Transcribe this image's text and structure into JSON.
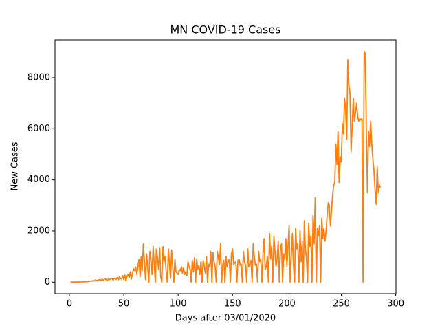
{
  "chart_data": {
    "type": "line",
    "title": "MN COVID-19 Cases",
    "xlabel": "Days after 03/01/2020",
    "ylabel": "New Cases",
    "color": "#ff7f0e",
    "xlim": [
      -13.25,
      300.25
    ],
    "xticks": [
      0,
      50,
      100,
      150,
      200,
      250,
      300
    ],
    "ylim": [
      -450,
      9480
    ],
    "yticks": [
      0,
      2000,
      4000,
      6000,
      8000
    ],
    "x": [
      1,
      2,
      3,
      4,
      5,
      6,
      7,
      8,
      9,
      10,
      11,
      12,
      13,
      14,
      15,
      16,
      17,
      18,
      19,
      20,
      21,
      22,
      23,
      24,
      25,
      26,
      27,
      28,
      29,
      30,
      31,
      32,
      33,
      34,
      35,
      36,
      37,
      38,
      39,
      40,
      41,
      42,
      43,
      44,
      45,
      46,
      47,
      48,
      49,
      50,
      51,
      52,
      53,
      54,
      55,
      56,
      57,
      58,
      59,
      60,
      61,
      62,
      63,
      64,
      65,
      66,
      67,
      68,
      69,
      70,
      71,
      72,
      73,
      74,
      75,
      76,
      77,
      78,
      79,
      80,
      81,
      82,
      83,
      84,
      85,
      86,
      87,
      88,
      89,
      90,
      91,
      92,
      93,
      94,
      95,
      96,
      97,
      98,
      99,
      100,
      101,
      102,
      103,
      104,
      105,
      106,
      107,
      108,
      109,
      110,
      111,
      112,
      113,
      114,
      115,
      116,
      117,
      118,
      119,
      120,
      121,
      122,
      123,
      124,
      125,
      126,
      127,
      128,
      129,
      130,
      131,
      132,
      133,
      134,
      135,
      136,
      137,
      138,
      139,
      140,
      141,
      142,
      143,
      144,
      145,
      146,
      147,
      148,
      149,
      150,
      151,
      152,
      153,
      154,
      155,
      156,
      157,
      158,
      159,
      160,
      161,
      162,
      163,
      164,
      165,
      166,
      167,
      168,
      169,
      170,
      171,
      172,
      173,
      174,
      175,
      176,
      177,
      178,
      179,
      180,
      181,
      182,
      183,
      184,
      185,
      186,
      187,
      188,
      189,
      190,
      191,
      192,
      193,
      194,
      195,
      196,
      197,
      198,
      199,
      200,
      201,
      202,
      203,
      204,
      205,
      206,
      207,
      208,
      209,
      210,
      211,
      212,
      213,
      214,
      215,
      216,
      217,
      218,
      219,
      220,
      221,
      222,
      223,
      224,
      225,
      226,
      227,
      228,
      229,
      230,
      231,
      232,
      233,
      234,
      235,
      236,
      237,
      238,
      239,
      240,
      241,
      242,
      243,
      244,
      245,
      246,
      247,
      248,
      249,
      250,
      251,
      252,
      253,
      254,
      255,
      256,
      257,
      258,
      259,
      260,
      261,
      262,
      263,
      264,
      265,
      266,
      267,
      268,
      269,
      270,
      271,
      272,
      273,
      274,
      275,
      276,
      277,
      278,
      279,
      280,
      281,
      282,
      283,
      284,
      285,
      286
    ],
    "values": [
      1,
      0,
      2,
      3,
      5,
      2,
      4,
      8,
      10,
      5,
      7,
      12,
      15,
      10,
      20,
      25,
      18,
      30,
      40,
      35,
      50,
      60,
      45,
      80,
      70,
      55,
      90,
      100,
      60,
      120,
      80,
      110,
      130,
      90,
      70,
      140,
      100,
      120,
      150,
      80,
      130,
      160,
      110,
      180,
      90,
      200,
      150,
      120,
      250,
      100,
      280,
      50,
      230,
      300,
      180,
      400,
      120,
      350,
      520,
      450,
      580,
      300,
      600,
      900,
      200,
      1000,
      450,
      1500,
      800,
      100,
      1100,
      600,
      0,
      1200,
      900,
      300,
      1400,
      700,
      0,
      1300,
      950,
      500,
      1350,
      200,
      0,
      1380,
      800,
      1000,
      400,
      0,
      1300,
      700,
      150,
      1250,
      600,
      0,
      900,
      400,
      350,
      300,
      500,
      450,
      600,
      350,
      550,
      300,
      400,
      250,
      800,
      600,
      500,
      0,
      850,
      400,
      950,
      0,
      900,
      500,
      650,
      300,
      800,
      0,
      850,
      600,
      350,
      1000,
      0,
      700,
      600,
      1200,
      0,
      1150,
      800,
      600,
      0,
      1200,
      950,
      700,
      1500,
      0,
      700,
      850,
      0,
      1000,
      600,
      800,
      900,
      0,
      1100,
      1300,
      700,
      750,
      800,
      0,
      850,
      900,
      650,
      700,
      0,
      1200,
      800,
      650,
      0,
      1300,
      600,
      700,
      850,
      0,
      1500,
      1000,
      650,
      700,
      0,
      1200,
      800,
      900,
      0,
      1100,
      1700,
      500,
      600,
      1000,
      0,
      1900,
      900,
      1400,
      0,
      1800,
      1200,
      600,
      950,
      1600,
      0,
      1300,
      1500,
      0,
      1100,
      900,
      1700,
      600,
      1400,
      2200,
      0,
      1000,
      1900,
      700,
      0,
      2100,
      1300,
      1500,
      0,
      2000,
      800,
      1600,
      0,
      2400,
      1300,
      900,
      0,
      2300,
      1400,
      1800,
      0,
      2600,
      1500,
      3300,
      0,
      2100,
      1800,
      2200,
      0,
      2500,
      1700,
      2100,
      1600,
      2000,
      2600,
      3100,
      3000,
      2200,
      2800,
      3400,
      3800,
      3900,
      5400,
      4600,
      5900,
      3900,
      4900,
      4700,
      6200,
      5800,
      7200,
      6800,
      5600,
      8700,
      7700,
      7400,
      5100,
      6100,
      7200,
      6300,
      6600,
      7000,
      6500,
      6300,
      6400,
      6350,
      6400,
      0,
      9030,
      8950,
      6000,
      3500,
      5900,
      5300,
      6300,
      5400,
      4800,
      4400,
      3600,
      3050,
      4500,
      3500,
      3800,
      3700
    ]
  }
}
